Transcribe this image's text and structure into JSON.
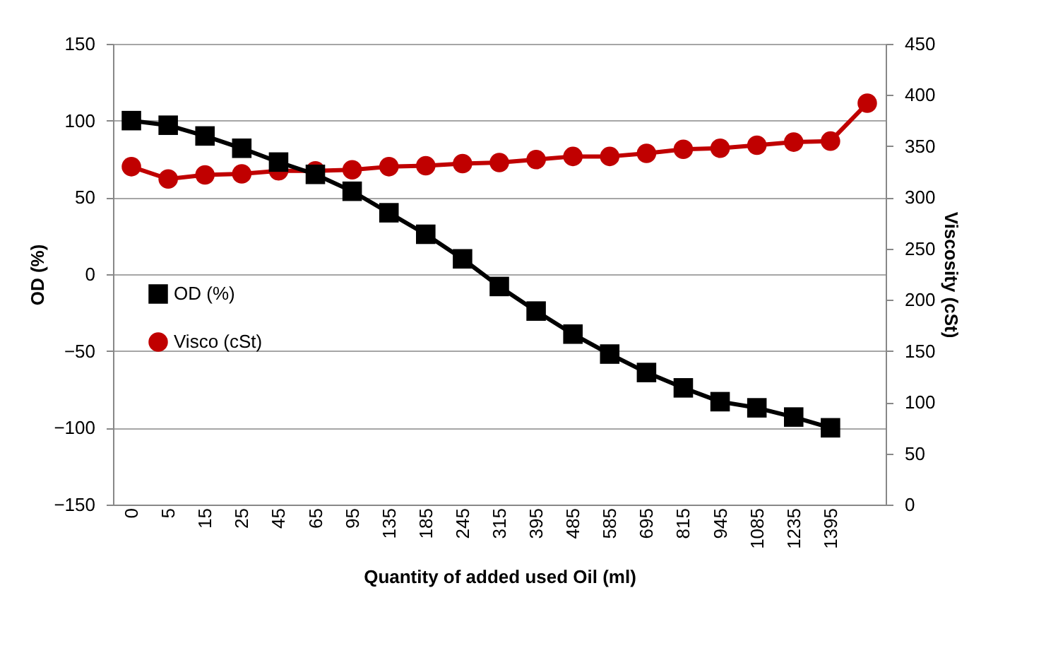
{
  "chart_data": {
    "type": "line",
    "xlabel": "Quantity of added used Oil (ml)",
    "ylabel": "OD (%)",
    "y2label": "Viscosity (cSt)",
    "categories": [
      "0",
      "5",
      "15",
      "25",
      "45",
      "65",
      "95",
      "135",
      "185",
      "245",
      "315",
      "395",
      "485",
      "585",
      "695",
      "815",
      "945",
      "1085",
      "1235",
      "1395",
      null
    ],
    "series": [
      {
        "name": "OD (%)",
        "color": "#000000",
        "marker": "square",
        "values": [
          100,
          97,
          90,
          82,
          73,
          65,
          54,
          40,
          26,
          10,
          -8,
          -24,
          -39,
          -52,
          -64,
          -74,
          -83,
          -87,
          -93,
          -100,
          null
        ]
      },
      {
        "name": "Visco (cSt)",
        "color": "#c00000",
        "marker": "circle",
        "axis": "y2",
        "values": [
          330,
          318,
          322,
          323,
          326,
          326,
          327,
          330,
          331,
          333,
          334,
          337,
          340,
          340,
          343,
          347,
          348,
          351,
          354,
          355,
          392
        ]
      }
    ],
    "ylim": [
      -150,
      150
    ],
    "yticks": [
      -150,
      -100,
      -50,
      0,
      50,
      100,
      150
    ],
    "y2lim": [
      0,
      450
    ],
    "y2ticks": [
      0,
      50,
      100,
      150,
      200,
      250,
      300,
      350,
      400,
      450
    ],
    "grid": "y",
    "legend": "left",
    "line_style": "solid"
  }
}
